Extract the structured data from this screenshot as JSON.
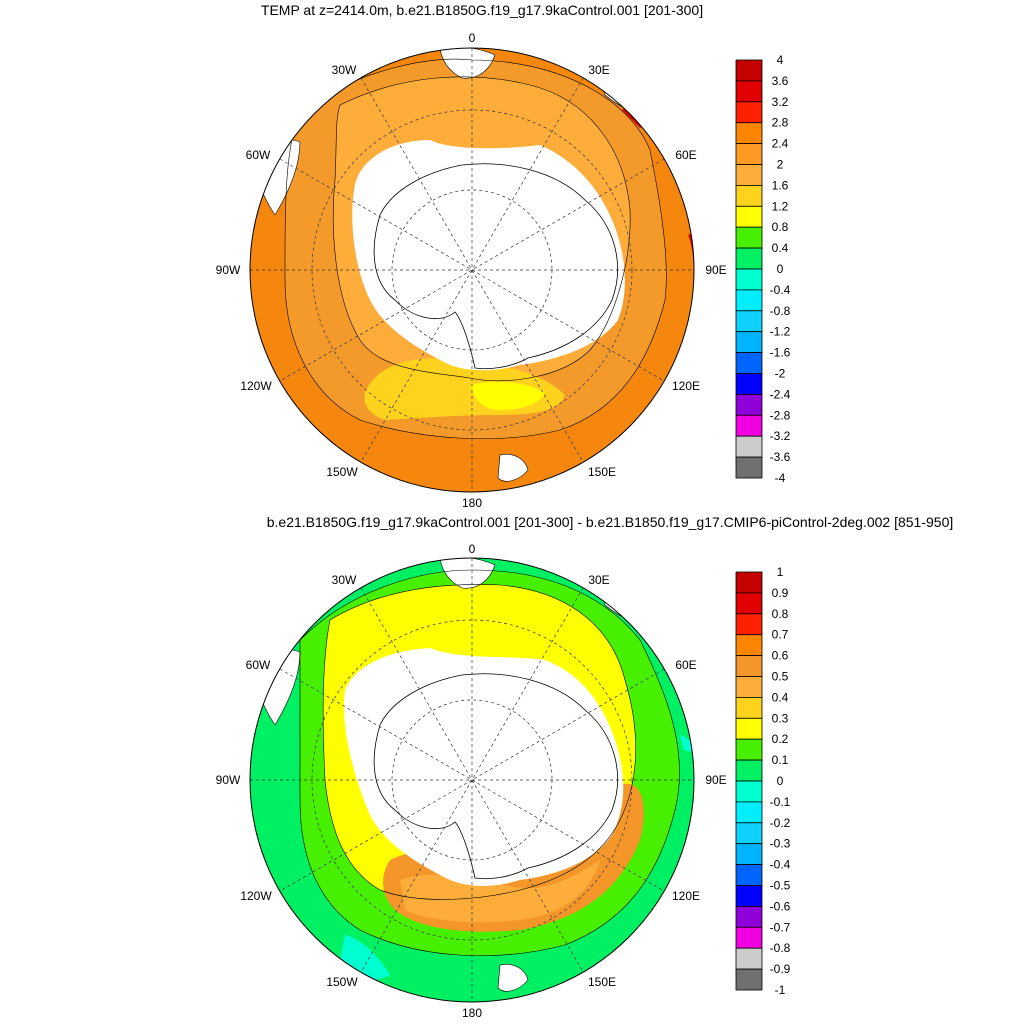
{
  "panels": [
    {
      "title": "TEMP at z=2414.0m, b.e21.B1850G.f19_g17.9kaControl.001 [201-300]",
      "lon_labels": [
        "0",
        "30E",
        "60E",
        "90E",
        "120E",
        "150E",
        "180",
        "150W",
        "120W",
        "90W",
        "60W",
        "30W"
      ],
      "colorbar": {
        "labels": [
          "4",
          "3.6",
          "3.2",
          "2.8",
          "2.4",
          "2",
          "1.6",
          "1.2",
          "0.8",
          "0.4",
          "0",
          "-0.4",
          "-0.8",
          "-1.2",
          "-1.6",
          "-2",
          "-2.4",
          "-2.8",
          "-3.2",
          "-3.6",
          "-4"
        ],
        "colors": [
          "#c40000",
          "#e00000",
          "#ff2000",
          "#ff8400",
          "#ff9a22",
          "#ffad3a",
          "#ffd21e",
          "#ffff00",
          "#46f000",
          "#00f064",
          "#00ffd0",
          "#00eeff",
          "#10d0ff",
          "#00b4ff",
          "#0064ff",
          "#0000ff",
          "#9000d8",
          "#f000e0",
          "#cccccc",
          "#707070"
        ]
      },
      "fields": {
        "ocean_outer": "#f5860e",
        "ocean_mid": "#f49a2a",
        "ocean_inner": "#ffad3a",
        "ross_sea": "#ffd21e",
        "ross_inner": "#ffff00",
        "hot_spot": "#e00000"
      }
    },
    {
      "title": "b.e21.B1850G.f19_g17.9kaControl.001 [201-300] - b.e21.B1850.f19_g17.CMIP6-piControl-2deg.002 [851-950]",
      "lon_labels": [
        "0",
        "30E",
        "60E",
        "90E",
        "120E",
        "150E",
        "180",
        "150W",
        "120W",
        "90W",
        "60W",
        "30W"
      ],
      "colorbar": {
        "labels": [
          "1",
          "0.9",
          "0.8",
          "0.7",
          "0.6",
          "0.5",
          "0.4",
          "0.3",
          "0.2",
          "0.1",
          "0",
          "-0.1",
          "-0.2",
          "-0.3",
          "-0.4",
          "-0.5",
          "-0.6",
          "-0.7",
          "-0.8",
          "-0.9",
          "-1"
        ],
        "colors": [
          "#c40000",
          "#e00000",
          "#ff2000",
          "#ff8400",
          "#f5962a",
          "#ffad3a",
          "#ffd21e",
          "#ffff00",
          "#46f000",
          "#00f064",
          "#00ffd0",
          "#00eeff",
          "#10d0ff",
          "#00b4ff",
          "#0064ff",
          "#0000ff",
          "#9000d8",
          "#f000e0",
          "#cccccc",
          "#707070"
        ]
      },
      "fields": {
        "ocean_outer": "#00f064",
        "ocean_mid": "#46f000",
        "ocean_inner": "#ffff00",
        "ross_sea": "#f5962a",
        "ross_inner": "#ffad3a",
        "hot_spot": "#00ffd0"
      }
    }
  ]
}
